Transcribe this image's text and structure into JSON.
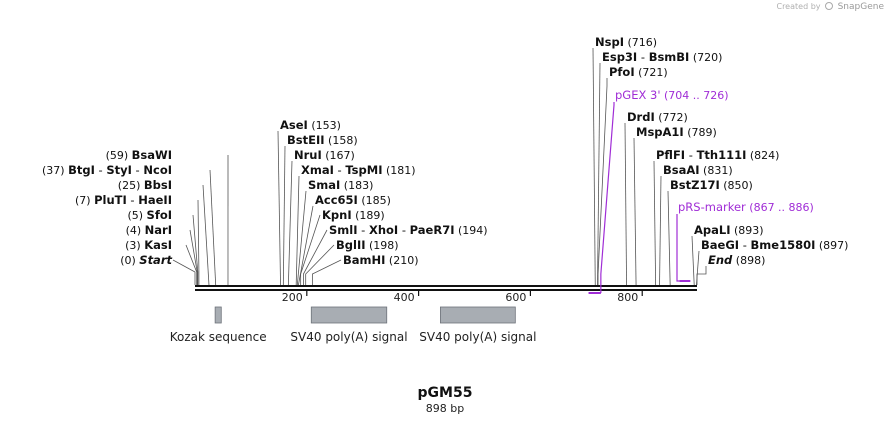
{
  "watermark": {
    "created_by": "Created by",
    "brand": "SnapGene"
  },
  "plasmid": {
    "name": "pGM55",
    "length_label": "898 bp",
    "length": 898
  },
  "ticks": [
    {
      "value": 200,
      "label": "200"
    },
    {
      "value": 400,
      "label": "400"
    },
    {
      "value": 600,
      "label": "600"
    },
    {
      "value": 800,
      "label": "800"
    }
  ],
  "left_sites": [
    {
      "names": [
        "Start"
      ],
      "pos": "(0)",
      "bp": 0,
      "italic": true
    },
    {
      "names": [
        "KasI"
      ],
      "pos": "(3)",
      "bp": 3
    },
    {
      "names": [
        "NarI"
      ],
      "pos": "(4)",
      "bp": 4
    },
    {
      "names": [
        "SfoI"
      ],
      "pos": "(5)",
      "bp": 5
    },
    {
      "names": [
        "PluTI",
        "HaeII"
      ],
      "pos": "(7)",
      "bp": 7
    },
    {
      "names": [
        "BbsI"
      ],
      "pos": "(25)",
      "bp": 25
    },
    {
      "names": [
        "BtgI",
        "StyI",
        "NcoI"
      ],
      "pos": "(37)",
      "bp": 37
    },
    {
      "names": [
        "BsaWI"
      ],
      "pos": "(59)",
      "bp": 59
    }
  ],
  "mid_sites": [
    {
      "names": [
        "BamHI"
      ],
      "pos": "(210)",
      "bp": 210
    },
    {
      "names": [
        "BglII"
      ],
      "pos": "(198)",
      "bp": 198
    },
    {
      "names": [
        "SmlI",
        "XhoI",
        "PaeR7I"
      ],
      "pos": "(194)",
      "bp": 194
    },
    {
      "names": [
        "KpnI"
      ],
      "pos": "(189)",
      "bp": 189
    },
    {
      "names": [
        "Acc65I"
      ],
      "pos": "(185)",
      "bp": 185
    },
    {
      "names": [
        "SmaI"
      ],
      "pos": "(183)",
      "bp": 183
    },
    {
      "names": [
        "XmaI",
        "TspMI"
      ],
      "pos": "(181)",
      "bp": 181
    },
    {
      "names": [
        "NruI"
      ],
      "pos": "(167)",
      "bp": 167
    },
    {
      "names": [
        "BstEII"
      ],
      "pos": "(158)",
      "bp": 158
    },
    {
      "names": [
        "AseI"
      ],
      "pos": "(153)",
      "bp": 153
    }
  ],
  "right_sites": [
    {
      "names": [
        "NspI"
      ],
      "pos": "(716)",
      "bp": 716
    },
    {
      "names": [
        "Esp3I",
        "BsmBI"
      ],
      "pos": "(720)",
      "bp": 720
    },
    {
      "names": [
        "PfoI"
      ],
      "pos": "(721)",
      "bp": 721
    },
    {
      "names": [
        "DrdI"
      ],
      "pos": "(772)",
      "bp": 772
    },
    {
      "names": [
        "MspA1I"
      ],
      "pos": "(789)",
      "bp": 789
    },
    {
      "names": [
        "PflFI",
        "Tth111I"
      ],
      "pos": "(824)",
      "bp": 824
    },
    {
      "names": [
        "BsaAI"
      ],
      "pos": "(831)",
      "bp": 831
    },
    {
      "names": [
        "BstZ17I"
      ],
      "pos": "(850)",
      "bp": 850
    },
    {
      "names": [
        "ApaLI"
      ],
      "pos": "(893)",
      "bp": 893
    },
    {
      "names": [
        "BaeGI",
        "Bme1580I"
      ],
      "pos": "(897)",
      "bp": 897
    },
    {
      "names": [
        "End"
      ],
      "pos": "(898)",
      "bp": 898,
      "italic": true
    }
  ],
  "primers": [
    {
      "name": "pGEX 3'",
      "range": "(704 .. 726)",
      "start": 704,
      "end": 726,
      "direction": "reverse"
    },
    {
      "name": "pRS-marker",
      "range": "(867 .. 886)",
      "start": 867,
      "end": 886,
      "direction": "forward"
    }
  ],
  "features": [
    {
      "name": "Kozak sequence",
      "start": 36,
      "end": 47
    },
    {
      "name": "SV40 poly(A) signal",
      "start": 208,
      "end": 343
    },
    {
      "name": "SV40 poly(A) signal",
      "start": 439,
      "end": 573
    }
  ],
  "colors": {
    "primer": "#a02dd6",
    "feature_fill": "#a8adb3",
    "feature_stroke": "#6e737a",
    "line": "#555555",
    "backbone": "#111111"
  }
}
